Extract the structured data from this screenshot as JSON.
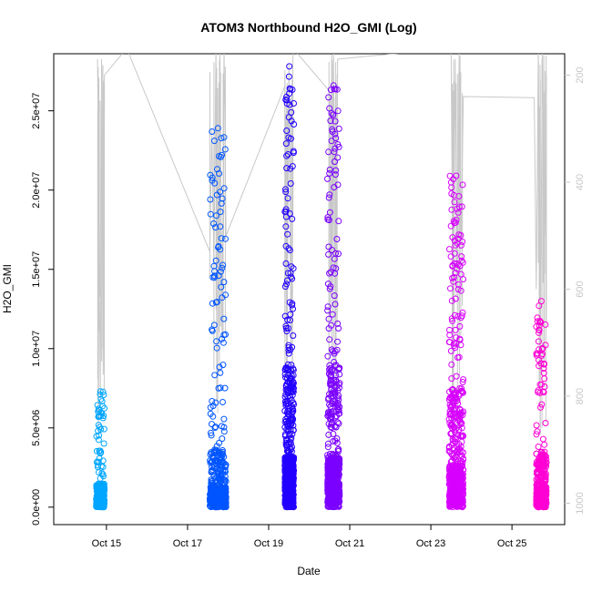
{
  "chart_data": {
    "type": "scatter",
    "title": "ATOM3 Northbound H2O_GMI (Log)",
    "xlabel": "Date",
    "ylabel": "H2O_GMI",
    "x_ticks": [
      {
        "day": 15,
        "label": "Oct 15"
      },
      {
        "day": 17,
        "label": "Oct 17"
      },
      {
        "day": 19,
        "label": "Oct 19"
      },
      {
        "day": 21,
        "label": "Oct 21"
      },
      {
        "day": 23,
        "label": "Oct 23"
      },
      {
        "day": 25,
        "label": "Oct 25"
      }
    ],
    "xlim_days": [
      13.7,
      26.3
    ],
    "y_ticks": [
      {
        "value": 0,
        "label": "0.0e+00"
      },
      {
        "value": 5000000,
        "label": "5.0e+06"
      },
      {
        "value": 10000000,
        "label": "1.0e+07"
      },
      {
        "value": 15000000,
        "label": "1.5e+07"
      },
      {
        "value": 20000000,
        "label": "2.0e+07"
      },
      {
        "value": 25000000,
        "label": "2.5e+07"
      }
    ],
    "ylim": [
      -1100000,
      28600000
    ],
    "right_axis": {
      "ticks": [
        {
          "value": 200,
          "label": "200"
        },
        {
          "value": 400,
          "label": "400"
        },
        {
          "value": 600,
          "label": "600"
        },
        {
          "value": 800,
          "label": "800"
        },
        {
          "value": 1000,
          "label": "1000"
        }
      ],
      "ylim": [
        1040,
        160
      ],
      "color": "#c8c8c8"
    },
    "series": [
      {
        "color": "#00a6ff",
        "x_range": [
          14.75,
          14.95
        ],
        "y_max": 7300000,
        "bulk_max": 1500000,
        "count": 420
      },
      {
        "color": "#0055ff",
        "x_range": [
          17.55,
          17.95
        ],
        "y_max": 23900000,
        "bulk_max": 3500000,
        "count": 560
      },
      {
        "color": "#2200ff",
        "x_range": [
          19.4,
          19.62
        ],
        "y_max": 27800000,
        "bulk_max": 9000000,
        "count": 650
      },
      {
        "color": "#7b00ff",
        "x_range": [
          20.45,
          20.75
        ],
        "y_max": 26600000,
        "bulk_max": 9000000,
        "count": 620
      },
      {
        "color": "#d700ff",
        "x_range": [
          23.45,
          23.8
        ],
        "y_max": 20900000,
        "bulk_max": 7500000,
        "count": 600
      },
      {
        "color": "#ff00d4",
        "x_range": [
          25.6,
          25.85
        ],
        "y_max": 13000000,
        "bulk_max": 3500000,
        "count": 500
      }
    ],
    "pressure_track": {
      "color": "#c8c8c8",
      "points": [
        [
          14.78,
          170
        ],
        [
          14.82,
          560
        ],
        [
          14.85,
          800
        ],
        [
          14.88,
          170
        ],
        [
          14.92,
          760
        ],
        [
          14.95,
          200
        ],
        [
          15.5,
          150
        ],
        [
          17.55,
          530
        ],
        [
          17.6,
          300
        ],
        [
          17.65,
          560
        ],
        [
          17.7,
          150
        ],
        [
          17.75,
          600
        ],
        [
          17.8,
          150
        ],
        [
          17.85,
          700
        ],
        [
          17.9,
          150
        ],
        [
          17.95,
          500
        ],
        [
          19.4,
          220
        ],
        [
          19.45,
          800
        ],
        [
          19.5,
          180
        ],
        [
          19.55,
          700
        ],
        [
          19.6,
          150
        ],
        [
          20.5,
          230
        ],
        [
          20.55,
          600
        ],
        [
          20.6,
          150
        ],
        [
          20.65,
          800
        ],
        [
          20.7,
          170
        ],
        [
          23.5,
          150
        ],
        [
          23.55,
          700
        ],
        [
          23.6,
          170
        ],
        [
          23.65,
          600
        ],
        [
          23.7,
          150
        ],
        [
          23.75,
          500
        ],
        [
          23.8,
          240
        ],
        [
          25.55,
          242
        ],
        [
          25.6,
          600
        ],
        [
          25.65,
          150
        ],
        [
          25.7,
          700
        ],
        [
          25.75,
          150
        ],
        [
          25.8,
          500
        ],
        [
          25.85,
          200
        ]
      ]
    }
  }
}
